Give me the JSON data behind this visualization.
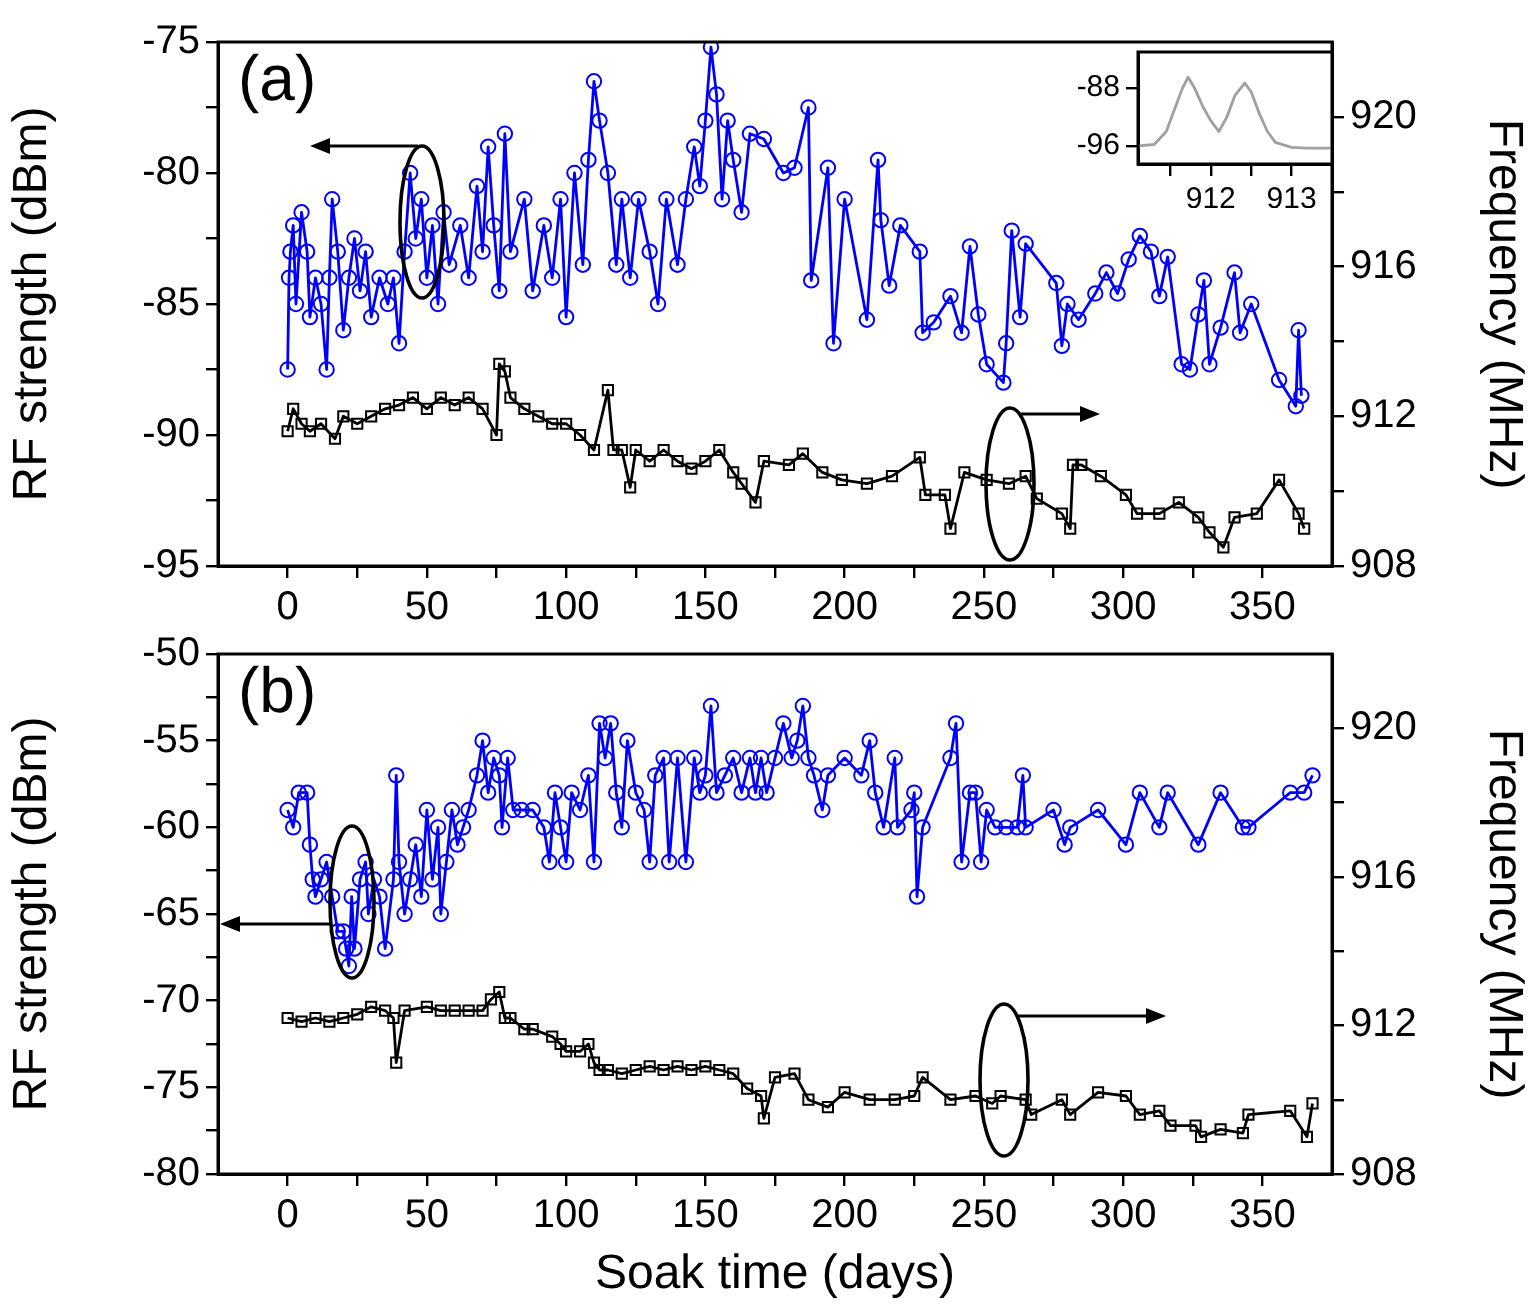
{
  "chart_data": [
    {
      "type": "line",
      "ylabel": "RF strength (dBm)",
      "y2label": "Frequency (MHz)",
      "annotations": [
        "(a)"
      ],
      "grid": false,
      "legend": false,
      "xlim": [
        -25,
        375
      ],
      "xticks": [
        0,
        {
          "value": 25,
          "label": null
        },
        50,
        {
          "value": 75,
          "label": null
        },
        100,
        {
          "value": 125,
          "label": null
        },
        150,
        {
          "value": 175,
          "label": null
        },
        200,
        {
          "value": 225,
          "label": null
        },
        250,
        {
          "value": 275,
          "label": null
        },
        300,
        {
          "value": 325,
          "label": null
        },
        350
      ],
      "ylim": [
        -95,
        -75
      ],
      "yticks": [
        -95,
        {
          "value": -92.5,
          "label": null
        },
        -90,
        {
          "value": -87.5,
          "label": null
        },
        -85,
        {
          "value": -82.5,
          "label": null
        },
        -80,
        {
          "value": -77.5,
          "label": null
        },
        -75
      ],
      "y2lim": [
        908,
        922
      ],
      "y2ticks": [
        908,
        {
          "value": 910,
          "label": null
        },
        912,
        {
          "value": 914,
          "label": null
        },
        916,
        {
          "value": 918,
          "label": null
        },
        920
      ],
      "series": [
        {
          "color": "#0000ff",
          "marker": "circle",
          "x": [
            0,
            0.5,
            1,
            2,
            3,
            5,
            7,
            8,
            10,
            12,
            14,
            15,
            16,
            18,
            20,
            22,
            24,
            26,
            28,
            30,
            33,
            36,
            38,
            40,
            42,
            44,
            46,
            48,
            50,
            52,
            54,
            56,
            58,
            62,
            65,
            68,
            70,
            72,
            74,
            76,
            78,
            80,
            85,
            88,
            92,
            95,
            98,
            100,
            103,
            106,
            108,
            110,
            112,
            115,
            118,
            120,
            123,
            126,
            130,
            133,
            136,
            140,
            143,
            146,
            148,
            150,
            152,
            154,
            156,
            158,
            160,
            163,
            166,
            171,
            178,
            182,
            187,
            188,
            194,
            196,
            200,
            208,
            212,
            213,
            216,
            220,
            227,
            228,
            232,
            238,
            242,
            245,
            248,
            251,
            257,
            258,
            260,
            263,
            265,
            276,
            278,
            280,
            284,
            290,
            294,
            298,
            302,
            306,
            310,
            313,
            316,
            321,
            324,
            327,
            329,
            331,
            335,
            340,
            342,
            346,
            356,
            362,
            363,
            364
          ],
          "values": [
            -87.5,
            -84,
            -83,
            -82,
            -85,
            -81.5,
            -83,
            -85.5,
            -84,
            -85,
            -87.5,
            -84,
            -81,
            -83,
            -86,
            -84,
            -82.5,
            -84.5,
            -83,
            -85.5,
            -84,
            -85,
            -84,
            -86.5,
            -83,
            -80,
            -82.5,
            -81,
            -84,
            -82,
            -85,
            -81.5,
            -83.5,
            -82,
            -84,
            -80.5,
            -83,
            -79,
            -82,
            -84.5,
            -78.5,
            -83,
            -81,
            -84.5,
            -82,
            -84,
            -81,
            -85.5,
            -80,
            -83.5,
            -79.5,
            -76.5,
            -78,
            -80,
            -83.5,
            -81,
            -84,
            -81,
            -83,
            -85,
            -81,
            -83.5,
            -81,
            -79,
            -80.5,
            -78,
            -75.2,
            -77,
            -81,
            -78,
            -79.5,
            -81.5,
            -78.5,
            -78.7,
            -80,
            -79.8,
            -77.5,
            -84.1,
            -79.8,
            -86.5,
            -81,
            -85.6,
            -79.5,
            -81.8,
            -84.3,
            -82,
            -83,
            -86.1,
            -85.7,
            -84.7,
            -86.1,
            -82.8,
            -85.4,
            -87.3,
            -88,
            -86.5,
            -82.2,
            -85.5,
            -82.7,
            -84.2,
            -86.6,
            -85,
            -85.6,
            -84.6,
            -83.8,
            -84.6,
            -83.3,
            -82.4,
            -83,
            -84.7,
            -83.2,
            -87.3,
            -87.5,
            -85.4,
            -84.1,
            -87.3,
            -85.9,
            -83.8,
            -86.1,
            -85,
            -87.9,
            -88.9,
            -86,
            -88.5
          ]
        },
        {
          "color": "#000000",
          "marker": "square",
          "axis": "y2",
          "x": [
            0,
            2,
            5,
            8,
            12,
            17,
            20,
            25,
            30,
            35,
            40,
            45,
            50,
            55,
            60,
            65,
            70,
            75,
            76,
            78,
            80,
            85,
            90,
            95,
            100,
            105,
            110,
            115,
            117,
            120,
            123,
            125,
            130,
            135,
            140,
            145,
            150,
            155,
            160,
            163,
            168,
            171,
            180,
            185,
            192,
            199,
            208,
            217,
            227,
            229,
            236,
            238,
            243,
            251,
            259,
            265,
            269,
            278,
            281,
            282,
            285,
            292,
            301,
            305,
            313,
            320,
            327,
            331,
            336,
            340,
            348,
            356,
            363,
            365
          ],
          "values": [
            911.6,
            912.2,
            911.8,
            911.6,
            911.8,
            911.4,
            912.0,
            911.8,
            912.0,
            912.2,
            912.3,
            912.5,
            912.2,
            912.5,
            912.3,
            912.5,
            912.2,
            911.5,
            913.4,
            913.2,
            912.5,
            912.2,
            912.0,
            911.8,
            911.8,
            911.5,
            911.1,
            912.7,
            911.1,
            911.1,
            910.1,
            911.1,
            910.8,
            911.1,
            910.8,
            910.6,
            910.8,
            911.1,
            910.5,
            910.2,
            909.7,
            910.8,
            910.7,
            911.0,
            910.5,
            910.3,
            910.2,
            910.4,
            910.9,
            909.9,
            909.9,
            909.0,
            910.5,
            910.3,
            910.2,
            910.4,
            909.8,
            909.4,
            909.0,
            910.7,
            910.7,
            910.4,
            909.9,
            909.4,
            909.4,
            909.7,
            909.3,
            908.9,
            908.5,
            909.3,
            909.4,
            910.3,
            909.4,
            909.0
          ]
        }
      ]
    },
    {
      "type": "line",
      "grid": false,
      "legend": false,
      "xlim": [
        911.1,
        913.5
      ],
      "xticks": [
        {
          "value": 911.5,
          "label": null
        },
        912,
        {
          "value": 912.5,
          "label": null
        },
        913
      ],
      "ylim": [
        -98.5,
        -83
      ],
      "yticks": [
        -96,
        -88
      ],
      "series": [
        {
          "color": "#a0a0a0",
          "marker": "none",
          "x": [
            911.1,
            911.3,
            911.45,
            911.55,
            911.65,
            911.72,
            911.8,
            911.9,
            912.0,
            912.1,
            912.2,
            912.3,
            912.42,
            912.5,
            912.6,
            912.7,
            912.8,
            913.0,
            913.2,
            913.48
          ],
          "values": [
            -96,
            -95.8,
            -94,
            -91,
            -88,
            -86.5,
            -88,
            -90.5,
            -92.5,
            -94,
            -92,
            -89,
            -87.3,
            -88.5,
            -91.5,
            -94,
            -95.5,
            -96.2,
            -96.3,
            -96.3
          ]
        }
      ]
    },
    {
      "type": "line",
      "xlabel": "Soak time (days)",
      "ylabel": "RF strength (dBm)",
      "y2label": "Frequency (MHz)",
      "annotations": [
        "(b)"
      ],
      "grid": false,
      "legend": false,
      "xlim": [
        -25,
        375
      ],
      "xticks": [
        0,
        {
          "value": 25,
          "label": null
        },
        50,
        {
          "value": 75,
          "label": null
        },
        100,
        {
          "value": 125,
          "label": null
        },
        150,
        {
          "value": 175,
          "label": null
        },
        200,
        {
          "value": 225,
          "label": null
        },
        250,
        {
          "value": 275,
          "label": null
        },
        300,
        {
          "value": 325,
          "label": null
        },
        350
      ],
      "ylim": [
        -80,
        -50
      ],
      "yticks": [
        -80,
        {
          "value": -77.5,
          "label": null
        },
        -75,
        {
          "value": -72.5,
          "label": null
        },
        -70,
        {
          "value": -67.5,
          "label": null
        },
        -65,
        {
          "value": -62.5,
          "label": null
        },
        -60,
        {
          "value": -57.5,
          "label": null
        },
        -55,
        {
          "value": -52.5,
          "label": null
        },
        -50
      ],
      "y2lim": [
        908,
        922
      ],
      "y2ticks": [
        908,
        {
          "value": 910,
          "label": null
        },
        912,
        {
          "value": 914,
          "label": null
        },
        916,
        {
          "value": 918,
          "label": null
        },
        920
      ],
      "series": [
        {
          "color": "#0000ff",
          "marker": "circle",
          "x": [
            0,
            2,
            4,
            7,
            8,
            9,
            10,
            12,
            14,
            16,
            18,
            20,
            21,
            22,
            23,
            24,
            26,
            28,
            29,
            31,
            33,
            35,
            38,
            39,
            40,
            42,
            44,
            46,
            48,
            50,
            52,
            54,
            55,
            57,
            59,
            61,
            63,
            65,
            68,
            70,
            72,
            74,
            76,
            77,
            79,
            81,
            84,
            88,
            92,
            94,
            96,
            98,
            100,
            102,
            105,
            108,
            110,
            112,
            114,
            116,
            118,
            120,
            122,
            125,
            128,
            130,
            132,
            135,
            137,
            140,
            143,
            146,
            148,
            150,
            152,
            154,
            157,
            160,
            163,
            166,
            168,
            170,
            172,
            175,
            178,
            181,
            183,
            185,
            187,
            189,
            192,
            194,
            200,
            206,
            209,
            211,
            214,
            218,
            219,
            224,
            225,
            226,
            228,
            238,
            240,
            242,
            245,
            247,
            249,
            251,
            254,
            258,
            262,
            264,
            265,
            275,
            279,
            281,
            291,
            301,
            306,
            313,
            316,
            327,
            335,
            343,
            345,
            360,
            365,
            368
          ],
          "values": [
            -59,
            -60,
            -58,
            -58,
            -61,
            -63,
            -64,
            -63,
            -62,
            -64,
            -66,
            -66,
            -67,
            -68,
            -64,
            -67,
            -63,
            -62,
            -65,
            -63,
            -64,
            -67,
            -63,
            -57,
            -62,
            -65,
            -63,
            -61,
            -64,
            -59,
            -63,
            -60,
            -65,
            -62,
            -59,
            -61,
            -60,
            -59,
            -57,
            -55,
            -58,
            -56,
            -57,
            -60,
            -56,
            -59,
            -59,
            -59,
            -60,
            -62,
            -58,
            -60,
            -62,
            -58,
            -59,
            -57,
            -62,
            -54,
            -56,
            -54,
            -58,
            -60,
            -55,
            -58,
            -59,
            -62,
            -57,
            -56,
            -62,
            -56,
            -62,
            -56,
            -58,
            -57,
            -53,
            -58,
            -57,
            -56,
            -58,
            -56,
            -58,
            -56,
            -58,
            -56,
            -54,
            -56,
            -55,
            -53,
            -56,
            -57,
            -59,
            -57,
            -56,
            -57,
            -55,
            -58,
            -60,
            -56,
            -60,
            -59,
            -58,
            -64,
            -60,
            -56,
            -54,
            -62,
            -58,
            -58,
            -62,
            -59,
            -60,
            -60,
            -60,
            -57,
            -60,
            -59,
            -61,
            -60,
            -59,
            -61,
            -58,
            -60,
            -58,
            -61,
            -58,
            -60,
            -60,
            -58,
            -58,
            -57
          ]
        },
        {
          "color": "#000000",
          "marker": "square",
          "axis": "y2",
          "x": [
            0,
            5,
            10,
            15,
            20,
            25,
            30,
            35,
            38,
            39,
            42,
            50,
            55,
            60,
            65,
            70,
            73,
            76,
            78,
            80,
            85,
            88,
            95,
            98,
            100,
            105,
            108,
            110,
            112,
            115,
            120,
            125,
            130,
            135,
            140,
            145,
            150,
            155,
            160,
            165,
            170,
            171,
            175,
            182,
            187,
            194,
            200,
            209,
            218,
            225,
            228,
            238,
            247,
            253,
            256,
            265,
            267,
            278,
            281,
            291,
            301,
            306,
            313,
            317,
            326,
            328,
            335,
            343,
            345,
            360,
            366,
            368
          ],
          "values": [
            912.2,
            912.1,
            912.2,
            912.1,
            912.2,
            912.3,
            912.5,
            912.4,
            912.2,
            911.0,
            912.4,
            912.5,
            912.4,
            912.4,
            912.4,
            912.4,
            912.7,
            912.9,
            912.2,
            912.2,
            911.9,
            911.9,
            911.7,
            911.5,
            911.3,
            911.3,
            911.5,
            911.0,
            910.8,
            910.8,
            910.7,
            910.8,
            910.9,
            910.8,
            910.9,
            910.8,
            910.9,
            910.8,
            910.7,
            910.3,
            910.1,
            909.5,
            910.6,
            910.7,
            910.0,
            909.8,
            910.2,
            910.0,
            910.0,
            910.1,
            910.6,
            910.0,
            910.1,
            909.9,
            910.1,
            910.0,
            909.6,
            910.0,
            909.6,
            910.2,
            910.1,
            909.6,
            909.7,
            909.3,
            909.3,
            909.0,
            909.2,
            909.1,
            909.6,
            909.7,
            909.0,
            909.9
          ]
        }
      ]
    }
  ]
}
